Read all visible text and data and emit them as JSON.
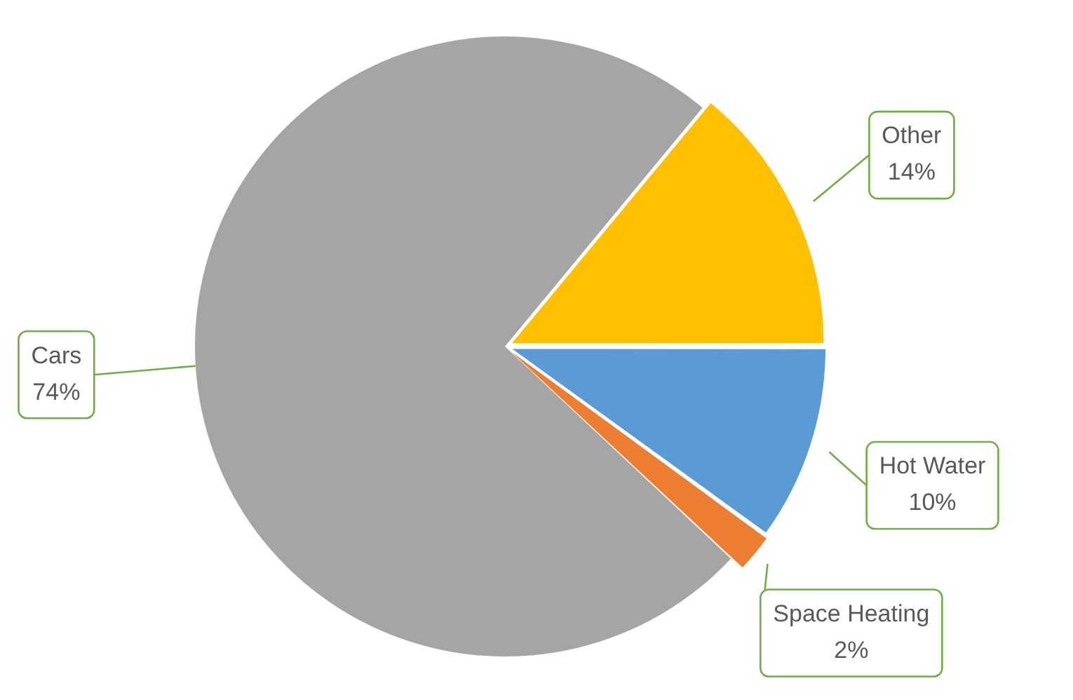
{
  "chart_data": {
    "type": "pie",
    "categories": [
      "Hot Water",
      "Space Heating",
      "Cars",
      "Other"
    ],
    "values": [
      10,
      2,
      74,
      14
    ],
    "colors": [
      "#5b9bd5",
      "#ed7d31",
      "#a5a5a5",
      "#ffc000"
    ],
    "value_labels": [
      "10%",
      "2%",
      "74%",
      "14%"
    ],
    "legend": false
  }
}
